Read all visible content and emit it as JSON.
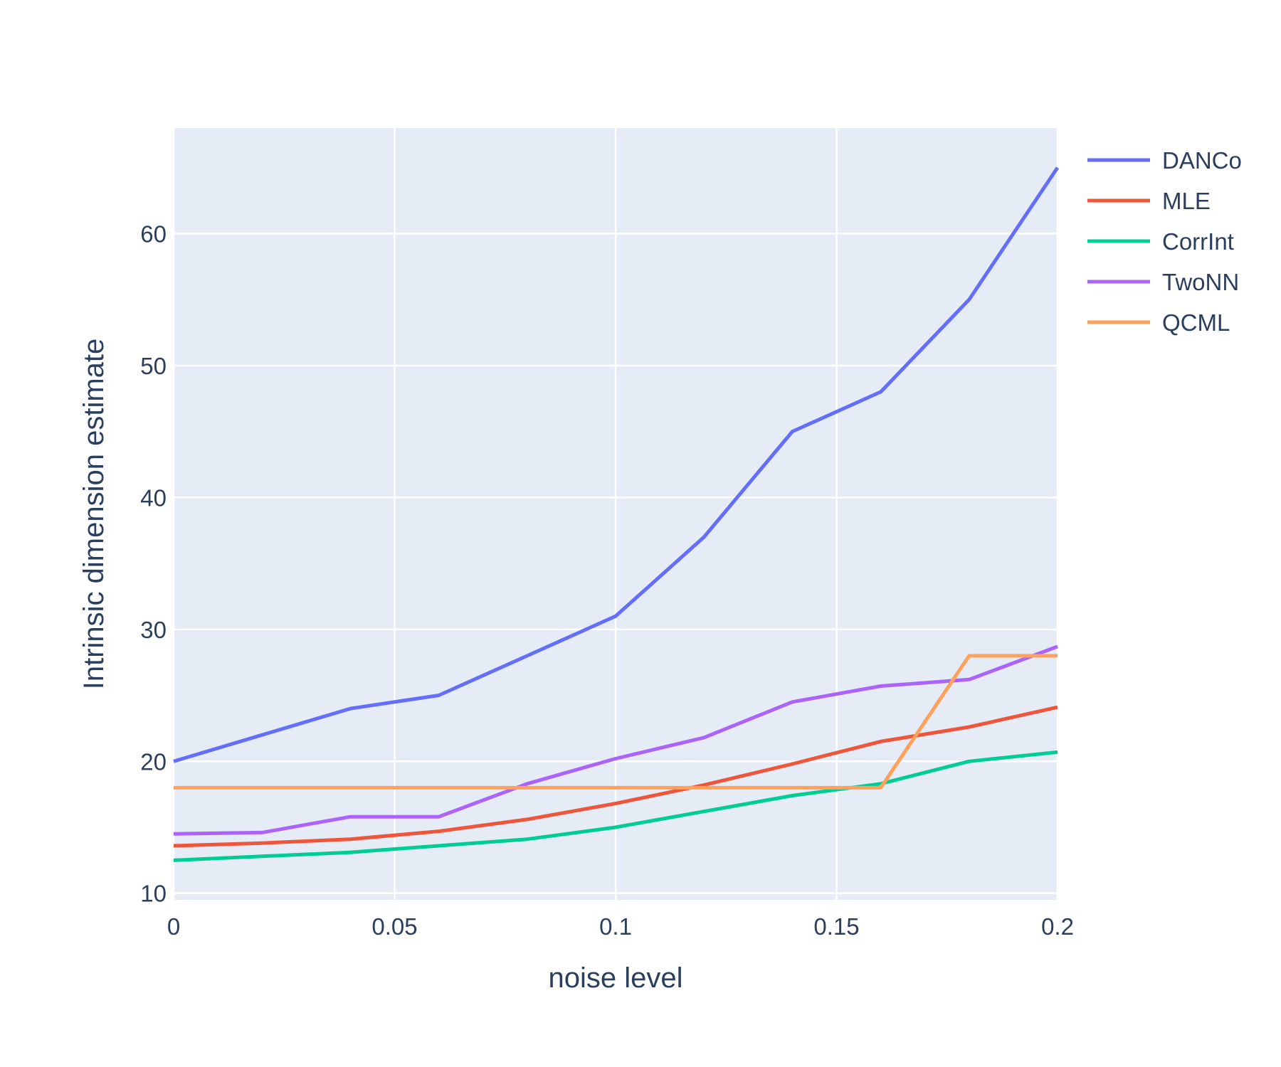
{
  "chart_data": {
    "type": "line",
    "title": "",
    "xlabel": "noise level",
    "ylabel": "Intrinsic dimension estimate",
    "xlim": [
      0,
      0.2
    ],
    "ylim": [
      9.5,
      68
    ],
    "xticks": [
      0,
      0.05,
      0.1,
      0.15,
      0.2
    ],
    "xtick_labels": [
      "0",
      "0.05",
      "0.1",
      "0.15",
      "0.2"
    ],
    "yticks": [
      10,
      20,
      30,
      40,
      50,
      60
    ],
    "ytick_labels": [
      "10",
      "20",
      "30",
      "40",
      "50",
      "60"
    ],
    "grid": true,
    "legend_position": "top-right",
    "plot_background": "#e5ecf6",
    "series": [
      {
        "name": "DANCo",
        "color": "#636efa",
        "x": [
          0,
          0.02,
          0.04,
          0.06,
          0.08,
          0.1,
          0.12,
          0.14,
          0.16,
          0.18,
          0.2
        ],
        "y": [
          20,
          22,
          24,
          25,
          28,
          31,
          37,
          45,
          48,
          55,
          65
        ]
      },
      {
        "name": "MLE",
        "color": "#ef553b",
        "x": [
          0,
          0.02,
          0.04,
          0.06,
          0.08,
          0.1,
          0.12,
          0.14,
          0.16,
          0.18,
          0.2
        ],
        "y": [
          13.6,
          13.8,
          14.1,
          14.7,
          15.6,
          16.8,
          18.2,
          19.8,
          21.5,
          22.6,
          24.1
        ]
      },
      {
        "name": "CorrInt",
        "color": "#00cc96",
        "x": [
          0,
          0.02,
          0.04,
          0.06,
          0.08,
          0.1,
          0.12,
          0.14,
          0.16,
          0.18,
          0.2
        ],
        "y": [
          12.5,
          12.8,
          13.1,
          13.6,
          14.1,
          15.0,
          16.2,
          17.4,
          18.3,
          20.0,
          20.7
        ]
      },
      {
        "name": "TwoNN",
        "color": "#ab63fa",
        "x": [
          0,
          0.02,
          0.04,
          0.06,
          0.08,
          0.1,
          0.12,
          0.14,
          0.16,
          0.18,
          0.2
        ],
        "y": [
          14.5,
          14.6,
          15.8,
          15.8,
          18.3,
          20.2,
          21.8,
          24.5,
          25.7,
          26.2,
          28.7
        ]
      },
      {
        "name": "QCML",
        "color": "#ffa15a",
        "x": [
          0,
          0.02,
          0.04,
          0.06,
          0.08,
          0.1,
          0.12,
          0.14,
          0.16,
          0.18,
          0.2
        ],
        "y": [
          18,
          18,
          18,
          18,
          18,
          18,
          18,
          18,
          18,
          28,
          28
        ]
      }
    ]
  }
}
